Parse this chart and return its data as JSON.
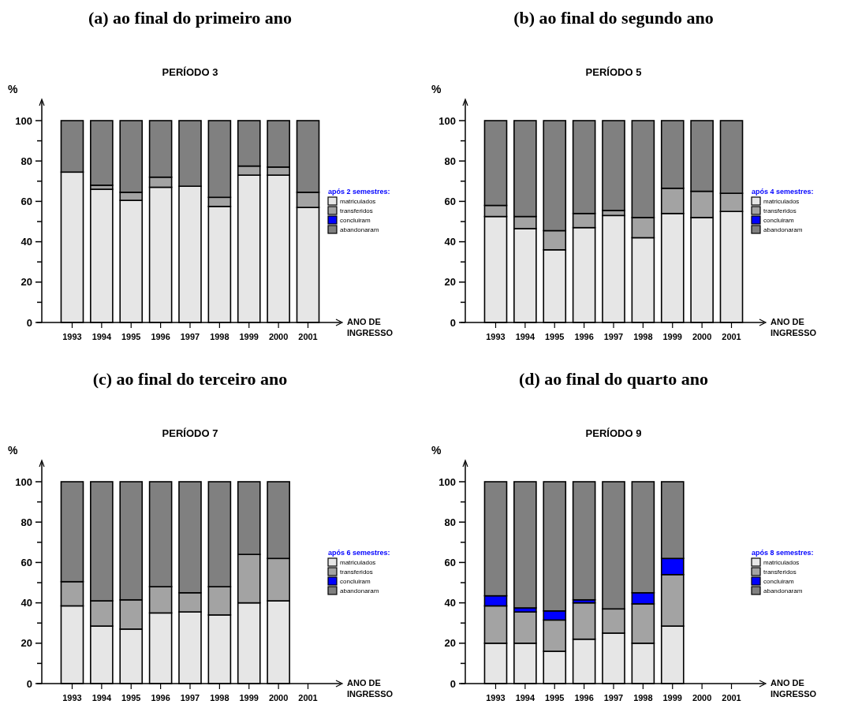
{
  "chart_data": [
    {
      "type": "bar",
      "title": "(a) ao final do primeiro ano",
      "subtitle": "PERÍODO 3",
      "ylabel": "%",
      "xlabel": "ANO DE INGRESSO",
      "legend_title": "após 2 semestres:",
      "legend": "right",
      "stacked": true,
      "categories": [
        "1993",
        "1994",
        "1995",
        "1996",
        "1997",
        "1998",
        "1999",
        "2000",
        "2001"
      ],
      "ylim": [
        0,
        100
      ],
      "yticks": [
        0,
        {
          "value": 10,
          "label": null
        },
        20,
        {
          "value": 30,
          "label": null
        },
        40,
        {
          "value": 50,
          "label": null
        },
        60,
        {
          "value": 70,
          "label": null
        },
        80,
        {
          "value": 90,
          "label": null
        },
        100
      ],
      "series": [
        {
          "name": "matriculados",
          "color": "#e6e6e6",
          "values": [
            74.5,
            66,
            60.5,
            67,
            67.5,
            57.5,
            73,
            73,
            57
          ]
        },
        {
          "name": "transferidos",
          "color": "#a3a3a3",
          "values": [
            null,
            2,
            4,
            5,
            null,
            4.5,
            4.5,
            4,
            7.5
          ]
        },
        {
          "name": "concluiram",
          "color": "#0000ff",
          "values": [
            0,
            0,
            0,
            0,
            0,
            0,
            0,
            0,
            0
          ]
        },
        {
          "name": "abandonaram",
          "color": "#808080",
          "values": [
            25.5,
            32,
            35.5,
            28,
            32.5,
            38,
            22.5,
            23,
            35.5
          ]
        }
      ]
    },
    {
      "type": "bar",
      "title": "(b) ao final do segundo ano",
      "subtitle": "PERÍODO 5",
      "ylabel": "%",
      "xlabel": "ANO DE INGRESSO",
      "legend_title": "após 4 semestres:",
      "legend": "right",
      "stacked": true,
      "categories": [
        "1993",
        "1994",
        "1995",
        "1996",
        "1997",
        "1998",
        "1999",
        "2000",
        "2001"
      ],
      "ylim": [
        0,
        100
      ],
      "yticks": [
        0,
        {
          "value": 10,
          "label": null
        },
        20,
        {
          "value": 30,
          "label": null
        },
        40,
        {
          "value": 50,
          "label": null
        },
        60,
        {
          "value": 70,
          "label": null
        },
        80,
        {
          "value": 90,
          "label": null
        },
        100
      ],
      "series": [
        {
          "name": "matriculados",
          "color": "#e6e6e6",
          "values": [
            52.5,
            46.5,
            36,
            47,
            53,
            42,
            54,
            52,
            55
          ]
        },
        {
          "name": "transferidos",
          "color": "#a3a3a3",
          "values": [
            5.5,
            6,
            9.5,
            7,
            2.5,
            10,
            12.5,
            13,
            9
          ]
        },
        {
          "name": "concluiram",
          "color": "#0000ff",
          "values": [
            0,
            0,
            0,
            0,
            0,
            0,
            0,
            0,
            0
          ]
        },
        {
          "name": "abandonaram",
          "color": "#808080",
          "values": [
            42,
            47.5,
            54.5,
            46,
            44.5,
            48,
            33.5,
            35,
            36
          ]
        }
      ]
    },
    {
      "type": "bar",
      "title": "(c) ao final do terceiro ano",
      "subtitle": "PERÍODO 7",
      "ylabel": "%",
      "xlabel": "ANO DE INGRESSO",
      "legend_title": "após 6 semestres:",
      "legend": "right",
      "stacked": true,
      "categories": [
        "1993",
        "1994",
        "1995",
        "1996",
        "1997",
        "1998",
        "1999",
        "2000",
        "2001"
      ],
      "ylim": [
        0,
        100
      ],
      "yticks": [
        0,
        {
          "value": 10,
          "label": null
        },
        20,
        {
          "value": 30,
          "label": null
        },
        40,
        {
          "value": 50,
          "label": null
        },
        60,
        {
          "value": 70,
          "label": null
        },
        80,
        {
          "value": 90,
          "label": null
        },
        100
      ],
      "series": [
        {
          "name": "matriculados",
          "color": "#e6e6e6",
          "values": [
            38.5,
            28.5,
            27,
            35,
            35.5,
            34,
            40,
            41,
            null
          ]
        },
        {
          "name": "transferidos",
          "color": "#a3a3a3",
          "values": [
            12,
            12.5,
            14.5,
            13,
            9.5,
            14,
            24,
            21,
            null
          ]
        },
        {
          "name": "concluiram",
          "color": "#0000ff",
          "values": [
            0,
            0,
            0,
            0,
            0,
            0,
            0,
            0,
            null
          ]
        },
        {
          "name": "abandonaram",
          "color": "#808080",
          "values": [
            49.5,
            59,
            58.5,
            52,
            55,
            52,
            36,
            38,
            null
          ]
        }
      ]
    },
    {
      "type": "bar",
      "title": "(d) ao final do quarto ano",
      "subtitle": "PERÍODO 9",
      "ylabel": "%",
      "xlabel": "ANO DE INGRESSO",
      "legend_title": "após 8 semestres:",
      "legend": "right",
      "stacked": true,
      "categories": [
        "1993",
        "1994",
        "1995",
        "1996",
        "1997",
        "1998",
        "1999",
        "2000",
        "2001"
      ],
      "ylim": [
        0,
        100
      ],
      "yticks": [
        0,
        {
          "value": 10,
          "label": null
        },
        20,
        {
          "value": 30,
          "label": null
        },
        40,
        {
          "value": 50,
          "label": null
        },
        60,
        {
          "value": 70,
          "label": null
        },
        80,
        {
          "value": 90,
          "label": null
        },
        100
      ],
      "series": [
        {
          "name": "matriculados",
          "color": "#e6e6e6",
          "values": [
            20,
            20,
            16,
            22,
            25,
            20,
            28.5,
            null,
            null
          ]
        },
        {
          "name": "transferidos",
          "color": "#a3a3a3",
          "values": [
            18.5,
            15.5,
            15.5,
            18,
            12,
            19.5,
            25.5,
            null,
            null
          ]
        },
        {
          "name": "concluiram",
          "color": "#0000ff",
          "values": [
            5,
            2,
            4.5,
            1.5,
            0,
            5.5,
            8,
            null,
            null
          ]
        },
        {
          "name": "abandonaram",
          "color": "#808080",
          "values": [
            56.5,
            62.5,
            64,
            58.5,
            63,
            55,
            38,
            null,
            null
          ]
        }
      ]
    }
  ]
}
